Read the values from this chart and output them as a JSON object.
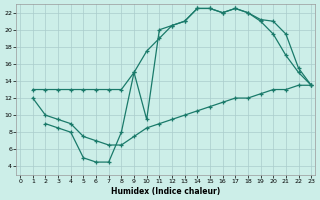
{
  "xlabel": "Humidex (Indice chaleur)",
  "bg_color": "#cceee8",
  "grid_color": "#aacccc",
  "line_color": "#1a7a6a",
  "x_ticks": [
    0,
    1,
    2,
    3,
    4,
    5,
    6,
    7,
    8,
    9,
    10,
    11,
    12,
    13,
    14,
    15,
    16,
    17,
    18,
    19,
    20,
    21,
    22,
    23
  ],
  "y_ticks": [
    4,
    6,
    8,
    10,
    12,
    14,
    16,
    18,
    20,
    22
  ],
  "xlim": [
    -0.3,
    23.3
  ],
  "ylim": [
    3.0,
    23.0
  ],
  "line1_x": [
    1,
    2,
    3,
    4,
    5,
    6,
    7,
    8,
    9,
    10,
    11,
    12,
    13,
    14,
    15,
    16,
    17,
    18,
    19,
    20,
    21,
    22,
    23
  ],
  "line1_y": [
    13,
    13,
    13,
    13,
    13,
    13,
    13,
    13,
    15,
    17.5,
    19,
    20.5,
    21,
    22.5,
    22.5,
    22,
    22.5,
    22,
    21.2,
    21,
    19.5,
    15.5,
    13.5
  ],
  "line2_x": [
    2,
    3,
    4,
    5,
    6,
    7,
    8,
    9,
    10,
    11,
    12,
    13,
    14,
    15,
    16,
    17,
    18,
    19,
    20,
    21,
    22,
    23
  ],
  "line2_y": [
    9,
    8.5,
    8,
    5,
    4.5,
    4.5,
    8,
    15,
    9.5,
    20,
    20.5,
    21,
    22.5,
    22.5,
    22,
    22.5,
    22,
    21,
    19.5,
    17,
    15,
    13.5
  ],
  "line3_x": [
    1,
    2,
    3,
    4,
    5,
    6,
    7,
    8,
    9,
    10,
    11,
    12,
    13,
    14,
    15,
    16,
    17,
    18,
    19,
    20,
    21,
    22,
    23
  ],
  "line3_y": [
    12,
    10,
    9.5,
    9,
    7.5,
    7,
    6.5,
    6.5,
    7.5,
    8.5,
    9,
    9.5,
    10,
    10.5,
    11,
    11.5,
    12,
    12,
    12.5,
    13,
    13,
    13.5,
    13.5
  ]
}
